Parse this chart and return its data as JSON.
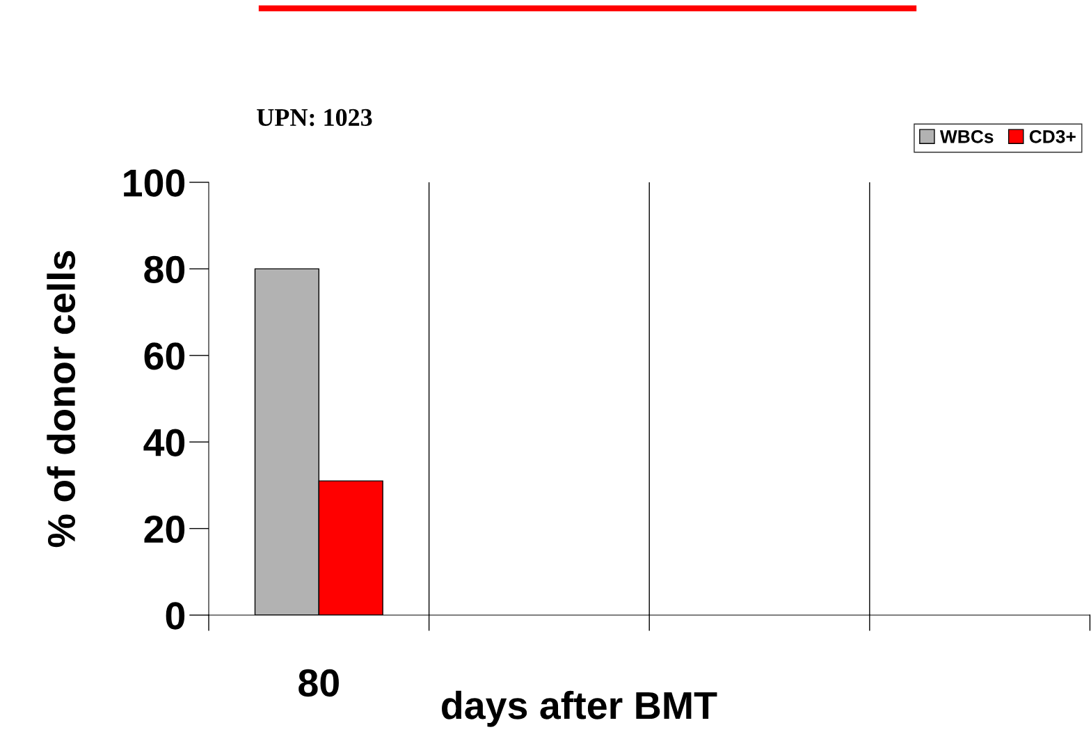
{
  "chart_data": {
    "type": "bar",
    "title": "UPN: 1023",
    "xlabel": "days after BMT",
    "ylabel": "% of donor cells",
    "categories": [
      "80",
      null,
      null,
      null
    ],
    "series": [
      {
        "name": "WBCs",
        "color": "#b2b2b2",
        "values": [
          80,
          null,
          null,
          null
        ]
      },
      {
        "name": "CD3+",
        "color": "#ff0000",
        "values": [
          31,
          null,
          null,
          null
        ]
      }
    ],
    "ylim": [
      0,
      100
    ],
    "yticks": [
      0,
      20,
      40,
      60,
      80,
      100
    ],
    "grid": "x",
    "legend": "top right"
  }
}
